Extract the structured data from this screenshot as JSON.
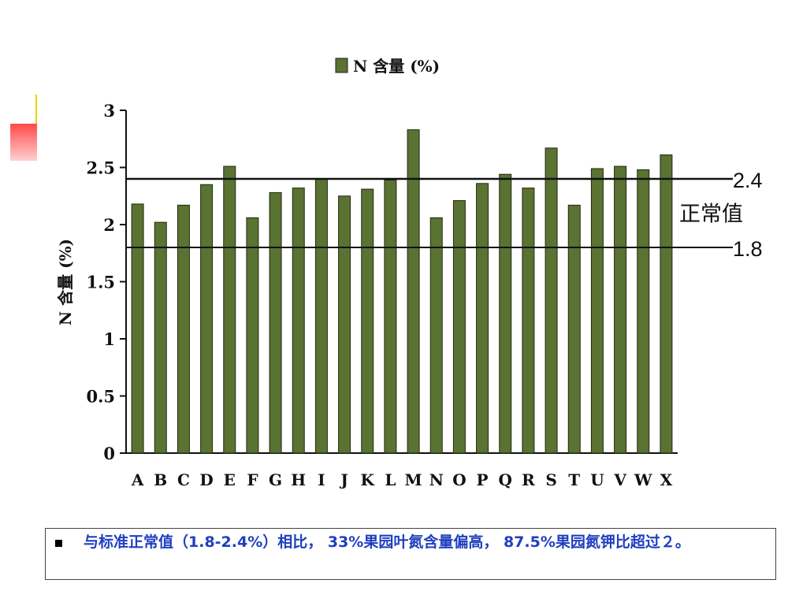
{
  "chart_data": {
    "type": "bar",
    "legend": "N 含量 (%)",
    "ylabel": "N 含量 (%)",
    "xlabel": "",
    "categories": [
      "A",
      "B",
      "C",
      "D",
      "E",
      "F",
      "G",
      "H",
      "I",
      "J",
      "K",
      "L",
      "M",
      "N",
      "O",
      "P",
      "Q",
      "R",
      "S",
      "T",
      "U",
      "V",
      "W",
      "X"
    ],
    "values": [
      2.18,
      2.02,
      2.17,
      2.35,
      2.51,
      2.06,
      2.28,
      2.32,
      2.4,
      2.25,
      2.31,
      2.39,
      2.83,
      2.06,
      2.21,
      2.36,
      2.44,
      2.32,
      2.67,
      2.17,
      2.49,
      2.51,
      2.48,
      2.61
    ],
    "ylim": [
      0,
      3
    ],
    "yticks": [
      0,
      0.5,
      1,
      1.5,
      2,
      2.5,
      3
    ],
    "ytick_labels": [
      "0",
      "0.5",
      "1",
      "1.5",
      "2",
      "2.5",
      "3"
    ],
    "reference_lines": [
      {
        "value": 2.4,
        "label": "2.4"
      },
      {
        "value": 1.8,
        "label": "1.8"
      }
    ],
    "range_label": "正常值",
    "bar_color": "#5a7232",
    "grid": false,
    "legend_position": "top-center"
  },
  "footer": {
    "text": "与标准正常值（1.8-2.4%）相比， 33%果园叶氮含量偏高， 87.5%果园氮钾比超过２。"
  }
}
